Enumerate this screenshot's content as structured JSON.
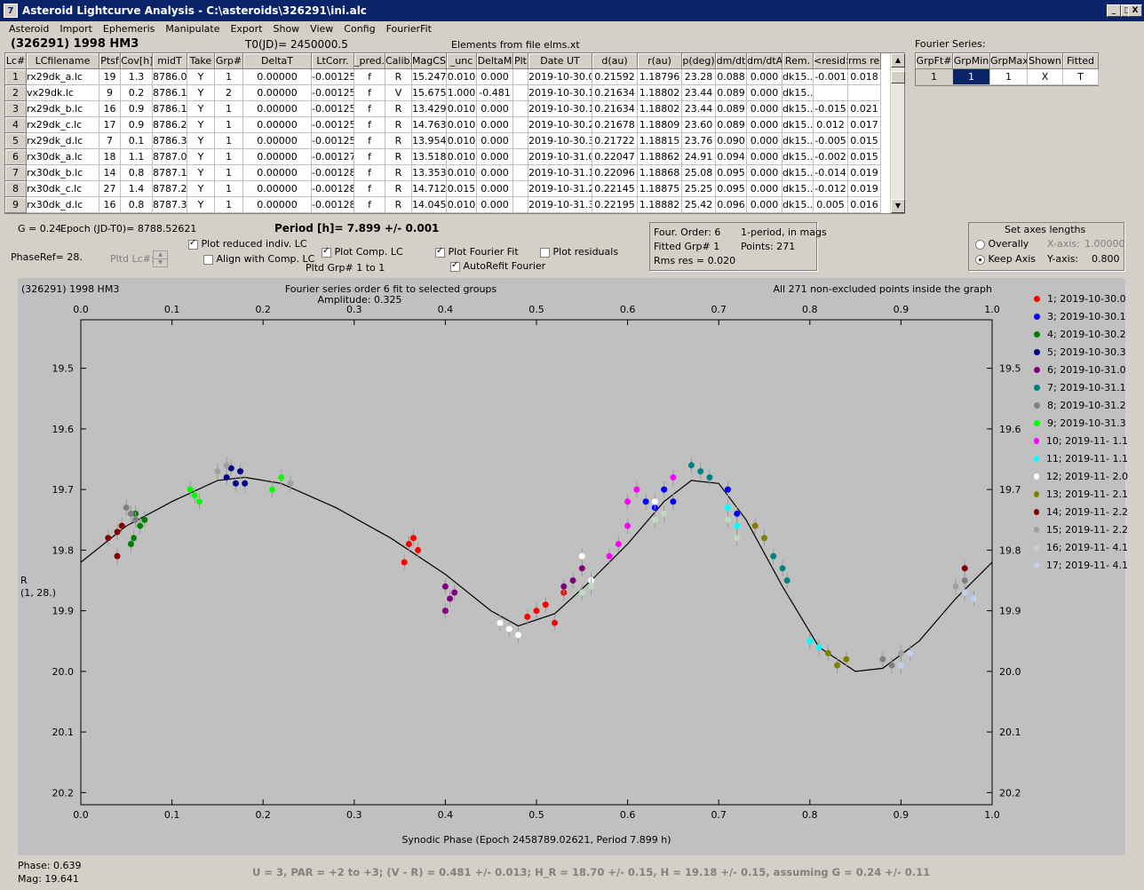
{
  "window": {
    "title": "Asteroid Lightcurve Analysis - C:\\asteroids\\326291\\ini.alc",
    "min": "_",
    "max": "□",
    "close": "X"
  },
  "menu": [
    "Asteroid",
    "Import",
    "Ephemeris",
    "Manipulate",
    "Export",
    "Show",
    "View",
    "Config",
    "FourierFit"
  ],
  "header": {
    "object": "(326291) 1998 HM3",
    "t0": "T0(JD)= 2450000.5",
    "elements": "Elements from file elms.xt",
    "fourier_label": "Fourier Series:"
  },
  "table": {
    "columns": [
      "Lc#",
      "LCfilename",
      "Ptsf",
      "Cov[h]",
      "midT",
      "Take",
      "Grp#",
      "DeltaT",
      "LtCorr.",
      "_pred.",
      "Calib.",
      "MagCS",
      "_unc",
      "DeltaM",
      "Plt",
      "Date UT",
      "d(au)",
      "r(au)",
      "p(deg)",
      "dm/dt",
      "dm/dtA",
      "Rem.",
      "<resid>",
      "rms res"
    ],
    "rows": [
      [
        "1",
        "rx29dk_a.lc",
        "19",
        "1.3",
        "8786.0",
        "Y",
        "1",
        "0.00000",
        "-0.00125",
        "f",
        "R",
        "15.247",
        "0.010",
        "0.000",
        "",
        "2019-10-30.0",
        "0.21592",
        "1.18796",
        "23.28",
        "0.088",
        "0.000",
        "dk15...",
        "-0.001",
        "0.018"
      ],
      [
        "2",
        "vx29dk.lc",
        "9",
        "0.2",
        "8786.1",
        "Y",
        "2",
        "0.00000",
        "-0.00125",
        "f",
        "V",
        "15.675",
        "1.000",
        "-0.481",
        "",
        "2019-10-30.1",
        "0.21634",
        "1.18802",
        "23.44",
        "0.089",
        "0.000",
        "dk15...",
        "",
        ""
      ],
      [
        "3",
        "rx29dk_b.lc",
        "16",
        "0.9",
        "8786.1",
        "Y",
        "1",
        "0.00000",
        "-0.00125",
        "f",
        "R",
        "13.429",
        "0.010",
        "0.000",
        "",
        "2019-10-30.1",
        "0.21634",
        "1.18802",
        "23.44",
        "0.089",
        "0.000",
        "dk15...",
        "-0.015",
        "0.021"
      ],
      [
        "4",
        "rx29dk_c.lc",
        "17",
        "0.9",
        "8786.2",
        "Y",
        "1",
        "0.00000",
        "-0.00125",
        "f",
        "R",
        "14.763",
        "0.010",
        "0.000",
        "",
        "2019-10-30.2",
        "0.21678",
        "1.18809",
        "23.60",
        "0.089",
        "0.000",
        "dk15...",
        "0.012",
        "0.017"
      ],
      [
        "5",
        "rx29dk_d.lc",
        "7",
        "0.1",
        "8786.3",
        "Y",
        "1",
        "0.00000",
        "-0.00125",
        "f",
        "R",
        "13.954",
        "0.010",
        "0.000",
        "",
        "2019-10-30.3",
        "0.21722",
        "1.18815",
        "23.76",
        "0.090",
        "0.000",
        "dk15...",
        "-0.005",
        "0.015"
      ],
      [
        "6",
        "rx30dk_a.lc",
        "18",
        "1.1",
        "8787.0",
        "Y",
        "1",
        "0.00000",
        "-0.00127",
        "f",
        "R",
        "13.518",
        "0.010",
        "0.000",
        "",
        "2019-10-31.0",
        "0.22047",
        "1.18862",
        "24.91",
        "0.094",
        "0.000",
        "dk15...",
        "-0.002",
        "0.015"
      ],
      [
        "7",
        "rx30dk_b.lc",
        "14",
        "0.8",
        "8787.1",
        "Y",
        "1",
        "0.00000",
        "-0.00128",
        "f",
        "R",
        "13.353",
        "0.010",
        "0.000",
        "",
        "2019-10-31.1",
        "0.22096",
        "1.18868",
        "25.08",
        "0.095",
        "0.000",
        "dk15...",
        "-0.014",
        "0.019"
      ],
      [
        "8",
        "rx30dk_c.lc",
        "27",
        "1.4",
        "8787.2",
        "Y",
        "1",
        "0.00000",
        "-0.00128",
        "f",
        "R",
        "14.712",
        "0.015",
        "0.000",
        "",
        "2019-10-31.2",
        "0.22145",
        "1.18875",
        "25.25",
        "0.095",
        "0.000",
        "dk15...",
        "-0.012",
        "0.019"
      ],
      [
        "9",
        "rx30dk_d.lc",
        "16",
        "0.8",
        "8787.3",
        "Y",
        "1",
        "0.00000",
        "-0.00128",
        "f",
        "R",
        "14.045",
        "0.010",
        "0.000",
        "",
        "2019-10-31.3",
        "0.22195",
        "1.18882",
        "25.42",
        "0.096",
        "0.000",
        "dk15...",
        "0.005",
        "0.016"
      ]
    ]
  },
  "fourier_table": {
    "columns": [
      "GrpFt#",
      "GrpMin",
      "GrpMax",
      "Shown",
      "Fitted"
    ],
    "row": [
      "1",
      "1",
      "1",
      "X",
      "T"
    ]
  },
  "controls": {
    "g_label": "G = 0.24",
    "epoch": "Epoch (JD-T0)= 8788.52621",
    "period": "Period [h]= 7.899 +/- 0.001",
    "phaseref": "PhaseRef= 28.",
    "pltd_lc": "Pltd Lc#:",
    "plot_reduced": "Plot reduced indiv. LC",
    "align_comp": "Align with Comp. LC",
    "plot_comp": "Plot Comp. LC",
    "pltd_grp": "Pltd Grp#  1  to  1",
    "plot_fourier": "Plot Fourier Fit",
    "autorefit": "AutoRefit Fourier",
    "plot_resid": "Plot residuals"
  },
  "fit_info": {
    "order": "Four. Order:  6",
    "period_mode": "1-period, in mags",
    "fitted": "Fitted Grp# 1",
    "points": "Points: 271",
    "rms": "Rms res      = 0.020"
  },
  "axes_box": {
    "title": "Set axes lengths",
    "overall": "Overally",
    "keep": "Keep Axis",
    "xaxis_label": "X-axis:",
    "xaxis_val": "1.00000",
    "yaxis_label": "Y-axis:",
    "yaxis_val": "0.800"
  },
  "chart_data": {
    "type": "scatter",
    "title_left": "(326291) 1998 HM3",
    "title": "Fourier series order 6 fit to selected groups",
    "subtitle": "Amplitude: 0.325",
    "note": "All 271 non-excluded points inside the graph",
    "xlabel": "Synodic Phase (Epoch 2458789.02621, Period 7.899 h)",
    "ylabel": "R",
    "ylabel2": "(1, 28.)",
    "xlim": [
      0,
      1
    ],
    "ylim": [
      20.22,
      19.42
    ],
    "xticks": [
      "0.0",
      "0.1",
      "0.2",
      "0.3",
      "0.4",
      "0.5",
      "0.6",
      "0.7",
      "0.8",
      "0.9",
      "1.0"
    ],
    "yticks": [
      "19.5",
      "19.6",
      "19.7",
      "19.8",
      "19.9",
      "20.0",
      "20.1",
      "20.2"
    ],
    "fit_curve": [
      [
        0,
        19.82
      ],
      [
        0.05,
        19.76
      ],
      [
        0.1,
        19.72
      ],
      [
        0.15,
        19.685
      ],
      [
        0.18,
        19.68
      ],
      [
        0.22,
        19.69
      ],
      [
        0.28,
        19.73
      ],
      [
        0.34,
        19.78
      ],
      [
        0.4,
        19.84
      ],
      [
        0.45,
        19.9
      ],
      [
        0.48,
        19.925
      ],
      [
        0.52,
        19.905
      ],
      [
        0.56,
        19.85
      ],
      [
        0.6,
        19.79
      ],
      [
        0.64,
        19.72
      ],
      [
        0.67,
        19.685
      ],
      [
        0.7,
        19.69
      ],
      [
        0.73,
        19.75
      ],
      [
        0.77,
        19.86
      ],
      [
        0.81,
        19.96
      ],
      [
        0.85,
        20.0
      ],
      [
        0.88,
        19.995
      ],
      [
        0.92,
        19.95
      ],
      [
        0.96,
        19.88
      ],
      [
        1.0,
        19.82
      ]
    ],
    "series": [
      {
        "name": "1; 2019-10-30.0",
        "color": "#ff0000",
        "points": [
          [
            0.36,
            19.79
          ],
          [
            0.37,
            19.8
          ],
          [
            0.355,
            19.82
          ],
          [
            0.365,
            19.78
          ],
          [
            0.5,
            19.9
          ],
          [
            0.51,
            19.89
          ],
          [
            0.52,
            19.92
          ],
          [
            0.53,
            19.87
          ],
          [
            0.49,
            19.91
          ]
        ]
      },
      {
        "name": "3; 2019-10-30.1",
        "color": "#0000ff",
        "points": [
          [
            0.62,
            19.72
          ],
          [
            0.63,
            19.73
          ],
          [
            0.64,
            19.7
          ],
          [
            0.65,
            19.72
          ],
          [
            0.71,
            19.7
          ],
          [
            0.72,
            19.74
          ]
        ]
      },
      {
        "name": "4; 2019-10-30.2",
        "color": "#008000",
        "points": [
          [
            0.06,
            19.74
          ],
          [
            0.065,
            19.76
          ],
          [
            0.07,
            19.75
          ],
          [
            0.058,
            19.78
          ],
          [
            0.055,
            19.79
          ]
        ]
      },
      {
        "name": "5; 2019-10-30.3",
        "color": "#000080",
        "points": [
          [
            0.16,
            19.68
          ],
          [
            0.17,
            19.69
          ],
          [
            0.175,
            19.67
          ],
          [
            0.18,
            19.69
          ],
          [
            0.165,
            19.665
          ]
        ]
      },
      {
        "name": "6; 2019-10-31.0",
        "color": "#800080",
        "points": [
          [
            0.4,
            19.86
          ],
          [
            0.41,
            19.87
          ],
          [
            0.405,
            19.88
          ],
          [
            0.4,
            19.9
          ],
          [
            0.53,
            19.86
          ],
          [
            0.54,
            19.85
          ],
          [
            0.55,
            19.83
          ]
        ]
      },
      {
        "name": "7; 2019-10-31.1",
        "color": "#008080",
        "points": [
          [
            0.67,
            19.66
          ],
          [
            0.68,
            19.67
          ],
          [
            0.69,
            19.68
          ],
          [
            0.76,
            19.81
          ],
          [
            0.77,
            19.83
          ],
          [
            0.775,
            19.85
          ]
        ]
      },
      {
        "name": "8; 2019-10-31.2",
        "color": "#808080",
        "points": [
          [
            0.05,
            19.73
          ],
          [
            0.055,
            19.74
          ],
          [
            0.06,
            19.75
          ],
          [
            0.88,
            19.98
          ],
          [
            0.89,
            19.99
          ],
          [
            0.97,
            19.85
          ]
        ]
      },
      {
        "name": "9; 2019-10-31.3",
        "color": "#00ff00",
        "points": [
          [
            0.12,
            19.7
          ],
          [
            0.125,
            19.71
          ],
          [
            0.13,
            19.72
          ],
          [
            0.21,
            19.7
          ],
          [
            0.22,
            19.68
          ]
        ]
      },
      {
        "name": "10; 2019-11- 1.1",
        "color": "#ff00ff",
        "points": [
          [
            0.58,
            19.81
          ],
          [
            0.59,
            19.79
          ],
          [
            0.6,
            19.76
          ],
          [
            0.6,
            19.72
          ],
          [
            0.61,
            19.7
          ],
          [
            0.65,
            19.68
          ]
        ]
      },
      {
        "name": "11; 2019-11- 1.1",
        "color": "#00ffff",
        "points": [
          [
            0.71,
            19.73
          ],
          [
            0.72,
            19.76
          ],
          [
            0.8,
            19.95
          ],
          [
            0.81,
            19.96
          ]
        ]
      },
      {
        "name": "12; 2019-11- 2.0",
        "color": "#ffffff",
        "points": [
          [
            0.46,
            19.92
          ],
          [
            0.47,
            19.93
          ],
          [
            0.48,
            19.94
          ],
          [
            0.55,
            19.81
          ],
          [
            0.56,
            19.85
          ],
          [
            0.63,
            19.72
          ]
        ]
      },
      {
        "name": "13; 2019-11- 2.1",
        "color": "#808000",
        "points": [
          [
            0.74,
            19.76
          ],
          [
            0.75,
            19.78
          ],
          [
            0.82,
            19.97
          ],
          [
            0.83,
            19.99
          ],
          [
            0.84,
            19.98
          ]
        ]
      },
      {
        "name": "14; 2019-11- 2.2",
        "color": "#800000",
        "points": [
          [
            0.03,
            19.78
          ],
          [
            0.04,
            19.77
          ],
          [
            0.045,
            19.76
          ],
          [
            0.04,
            19.81
          ],
          [
            0.97,
            19.83
          ]
        ]
      },
      {
        "name": "15; 2019-11- 2.2",
        "color": "#a0a0a0",
        "points": [
          [
            0.15,
            19.67
          ],
          [
            0.16,
            19.66
          ],
          [
            0.23,
            19.69
          ],
          [
            0.9,
            19.97
          ],
          [
            0.96,
            19.86
          ]
        ]
      },
      {
        "name": "16; 2019-11- 4.1",
        "color": "#c0d8c0",
        "points": [
          [
            0.55,
            19.87
          ],
          [
            0.56,
            19.86
          ],
          [
            0.63,
            19.75
          ],
          [
            0.64,
            19.74
          ],
          [
            0.71,
            19.75
          ],
          [
            0.72,
            19.78
          ]
        ]
      },
      {
        "name": "17; 2019-11- 4.1",
        "color": "#c0d0f0",
        "points": [
          [
            0.9,
            19.99
          ],
          [
            0.91,
            19.97
          ],
          [
            0.97,
            19.87
          ],
          [
            0.98,
            19.88
          ]
        ]
      }
    ]
  },
  "status": {
    "phase": "Phase:  0.639",
    "mag": "Mag:    19.641",
    "summary": "U = 3, PAR = +2 to +3; (V - R) = 0.481 +/- 0.013; H_R = 18.70 +/- 0.15, H = 19.18 +/- 0.15, assuming G = 0.24 +/- 0.11"
  }
}
